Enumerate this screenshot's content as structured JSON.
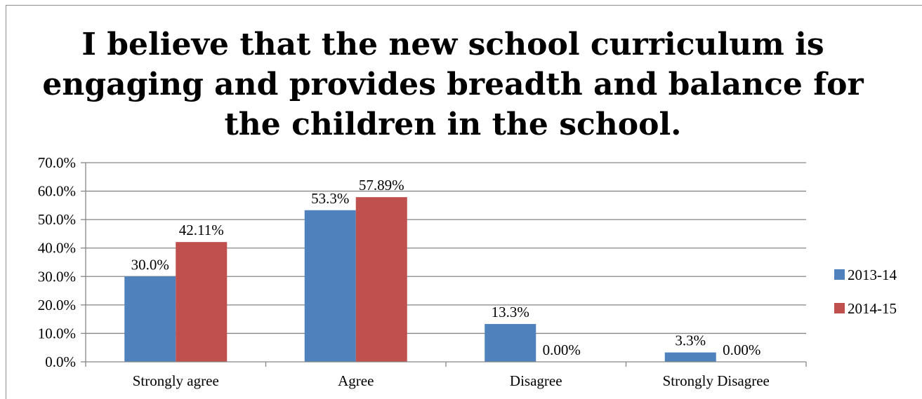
{
  "chart_data": {
    "type": "bar",
    "title": "I believe that the new school curriculum is\nengaging and provides breadth and balance for\nthe children in the school.",
    "categories": [
      "Strongly agree",
      "Agree",
      "Disagree",
      "Strongly Disagree"
    ],
    "series": [
      {
        "name": "2013-14",
        "color": "#4f81bd",
        "values": [
          30.0,
          53.3,
          13.3,
          3.3
        ],
        "labels": [
          "30.0%",
          "53.3%",
          "13.3%",
          "3.3%"
        ]
      },
      {
        "name": "2014-15",
        "color": "#c0504d",
        "values": [
          42.11,
          57.89,
          0.0,
          0.0
        ],
        "labels": [
          "42.11%",
          "57.89%",
          "0.00%",
          "0.00%"
        ]
      }
    ],
    "y_ticks": [
      "0.0%",
      "10.0%",
      "20.0%",
      "30.0%",
      "40.0%",
      "50.0%",
      "60.0%",
      "70.0%"
    ],
    "ylim": [
      0,
      70
    ],
    "grid": true,
    "legend_position": "right",
    "xlabel": "",
    "ylabel": ""
  }
}
